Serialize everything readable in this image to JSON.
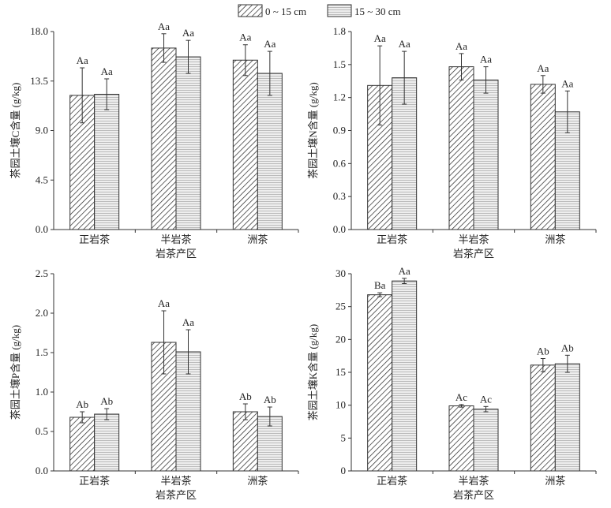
{
  "chart_data": [
    {
      "type": "bar",
      "ylabel": "茶园土壤C含量 (g/kg)",
      "xlabel": "岩茶产区",
      "ylim": [
        0,
        18
      ],
      "yticks": [
        "0.0",
        "4.5",
        "9.0",
        "13.5",
        "18.0"
      ],
      "categories": [
        "正岩茶",
        "半岩茶",
        "洲茶"
      ],
      "series": [
        {
          "name": "0 ~ 15 cm",
          "values": [
            12.2,
            16.5,
            15.4
          ],
          "errors": [
            2.5,
            1.3,
            1.4
          ],
          "labels": [
            "Aa",
            "Aa",
            "Aa"
          ]
        },
        {
          "name": "15 ~ 30 cm",
          "values": [
            12.3,
            15.7,
            14.2
          ],
          "errors": [
            1.4,
            1.5,
            2.0
          ],
          "labels": [
            "Aa",
            "Aa",
            "Aa"
          ]
        }
      ]
    },
    {
      "type": "bar",
      "ylabel": "茶园土壤N含量 (g/kg)",
      "xlabel": "岩茶产区",
      "ylim": [
        0,
        1.8
      ],
      "yticks": [
        "0.0",
        "0.3",
        "0.6",
        "0.9",
        "1.2",
        "1.5",
        "1.8"
      ],
      "categories": [
        "正岩茶",
        "半岩茶",
        "洲茶"
      ],
      "series": [
        {
          "name": "0 ~ 15 cm",
          "values": [
            1.31,
            1.48,
            1.32
          ],
          "errors": [
            0.36,
            0.12,
            0.08
          ],
          "labels": [
            "Aa",
            "Aa",
            "Aa"
          ]
        },
        {
          "name": "15 ~ 30 cm",
          "values": [
            1.38,
            1.36,
            1.07
          ],
          "errors": [
            0.24,
            0.12,
            0.19
          ],
          "labels": [
            "Aa",
            "Aa",
            "Aa"
          ]
        }
      ]
    },
    {
      "type": "bar",
      "ylabel": "茶园土壤P含量 (g/kg)",
      "xlabel": "岩茶产区",
      "ylim": [
        0,
        2.5
      ],
      "yticks": [
        "0.0",
        "0.5",
        "1.0",
        "1.5",
        "2.0",
        "2.5"
      ],
      "categories": [
        "正岩茶",
        "半岩茶",
        "洲茶"
      ],
      "series": [
        {
          "name": "0 ~ 15 cm",
          "values": [
            0.68,
            1.63,
            0.75
          ],
          "errors": [
            0.07,
            0.4,
            0.1
          ],
          "labels": [
            "Ab",
            "Aa",
            "Ab"
          ]
        },
        {
          "name": "15 ~ 30 cm",
          "values": [
            0.72,
            1.51,
            0.69
          ],
          "errors": [
            0.07,
            0.28,
            0.12
          ],
          "labels": [
            "Ab",
            "Aa",
            "Ab"
          ]
        }
      ]
    },
    {
      "type": "bar",
      "ylabel": "茶园土壤K含量 (g/kg)",
      "xlabel": "岩茶产区",
      "ylim": [
        0,
        30
      ],
      "yticks": [
        "0",
        "5",
        "10",
        "15",
        "20",
        "25",
        "30"
      ],
      "categories": [
        "正岩茶",
        "半岩茶",
        "洲茶"
      ],
      "series": [
        {
          "name": "0 ~ 15 cm",
          "values": [
            26.8,
            9.9,
            16.1
          ],
          "errors": [
            0.3,
            0.2,
            1.0
          ],
          "labels": [
            "Ba",
            "Ac",
            "Ab"
          ]
        },
        {
          "name": "15 ~ 30 cm",
          "values": [
            28.9,
            9.4,
            16.3
          ],
          "errors": [
            0.4,
            0.4,
            1.3
          ],
          "labels": [
            "Aa",
            "Ac",
            "Ab"
          ]
        }
      ]
    }
  ],
  "legend": {
    "items": [
      "0 ~ 15 cm",
      "15 ~ 30 cm"
    ]
  }
}
